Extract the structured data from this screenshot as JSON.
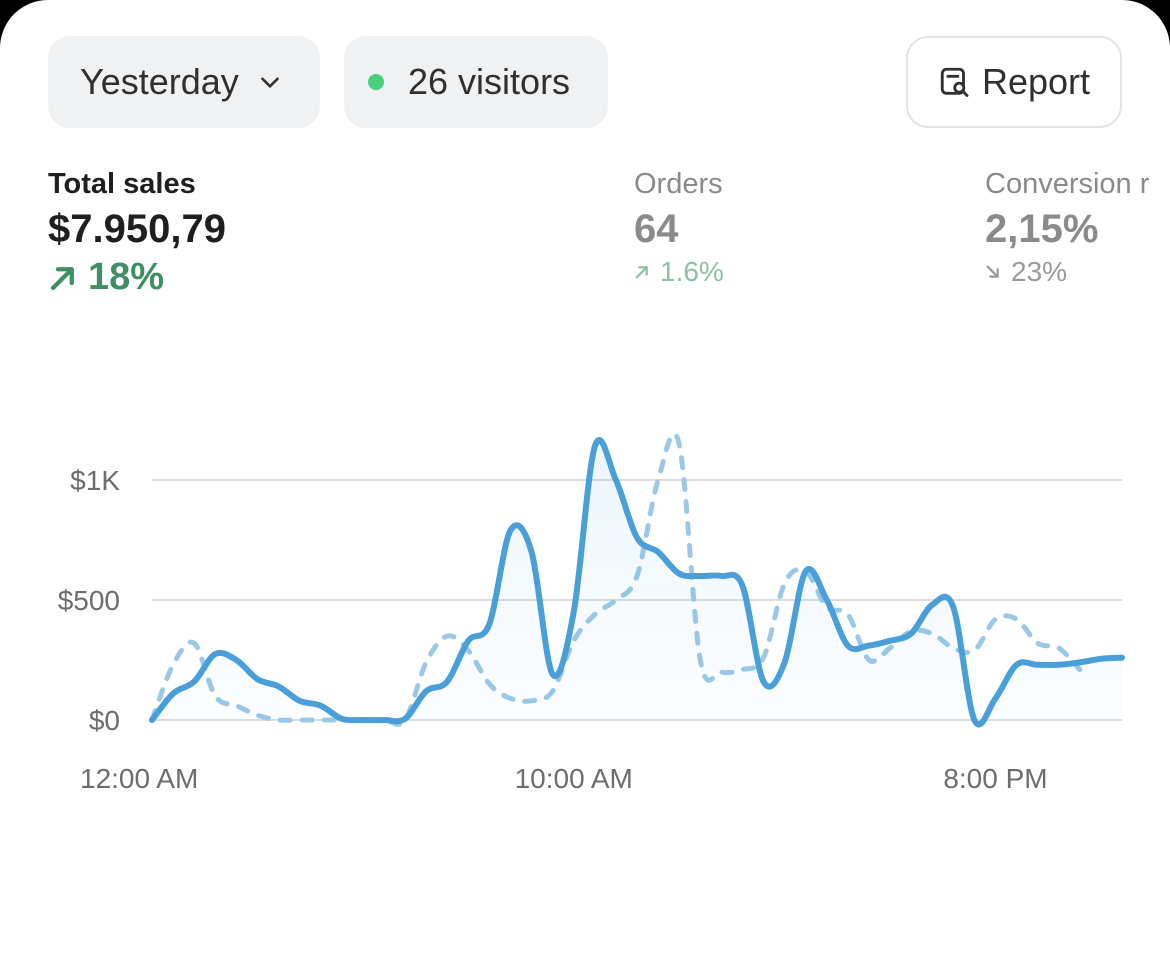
{
  "toolbar": {
    "date_label": "Yesterday",
    "visitors_label": "26 visitors",
    "report_label": "Report"
  },
  "metrics": {
    "sales": {
      "label": "Total sales",
      "value": "$7.950,79",
      "delta": "18%",
      "direction": "up"
    },
    "orders": {
      "label": "Orders",
      "value": "64",
      "delta": "1.6%",
      "direction": "up"
    },
    "conversion": {
      "label": "Conversion r",
      "value": "2,15%",
      "delta": "23%",
      "direction": "down"
    }
  },
  "colors": {
    "accent": "#4a9fd8",
    "comparison": "#9cc8e6",
    "positive": "#3f8f64",
    "live_dot": "#48d17c"
  },
  "chart_data": {
    "type": "line",
    "y_ticks": [
      {
        "value": 0,
        "label": "$0"
      },
      {
        "value": 500,
        "label": "$500"
      },
      {
        "value": 1000,
        "label": "$1K"
      }
    ],
    "x_ticks": [
      {
        "hour": 0,
        "label": "12:00 AM"
      },
      {
        "hour": 10,
        "label": "10:00 AM"
      },
      {
        "hour": 20,
        "label": "8:00 PM"
      }
    ],
    "ylim": [
      0,
      1000
    ],
    "xlim": [
      0,
      23
    ],
    "grid": true,
    "series": [
      {
        "style": "solid",
        "color": "#4a9fd8",
        "fill": true,
        "points": [
          [
            0,
            0
          ],
          [
            0.5,
            110
          ],
          [
            1.0,
            160
          ],
          [
            1.5,
            275
          ],
          [
            2.0,
            250
          ],
          [
            2.5,
            170
          ],
          [
            3.0,
            140
          ],
          [
            3.5,
            80
          ],
          [
            4.0,
            60
          ],
          [
            4.5,
            5
          ],
          [
            5.0,
            0
          ],
          [
            5.5,
            0
          ],
          [
            6.0,
            5
          ],
          [
            6.5,
            120
          ],
          [
            7.0,
            160
          ],
          [
            7.5,
            330
          ],
          [
            8.0,
            400
          ],
          [
            8.5,
            790
          ],
          [
            9.0,
            700
          ],
          [
            9.5,
            190
          ],
          [
            10.0,
            450
          ],
          [
            10.5,
            1140
          ],
          [
            11.0,
            1000
          ],
          [
            11.5,
            760
          ],
          [
            12.0,
            700
          ],
          [
            12.5,
            610
          ],
          [
            13.0,
            600
          ],
          [
            13.5,
            600
          ],
          [
            14.0,
            560
          ],
          [
            14.5,
            160
          ],
          [
            15.0,
            240
          ],
          [
            15.5,
            620
          ],
          [
            16.0,
            500
          ],
          [
            16.5,
            310
          ],
          [
            17.0,
            310
          ],
          [
            17.5,
            330
          ],
          [
            18.0,
            360
          ],
          [
            18.5,
            480
          ],
          [
            19.0,
            470
          ],
          [
            19.5,
            0
          ],
          [
            20.0,
            90
          ],
          [
            20.5,
            230
          ],
          [
            21.0,
            230
          ],
          [
            21.5,
            230
          ],
          [
            22.0,
            240
          ],
          [
            22.5,
            255
          ],
          [
            23.0,
            260
          ]
        ]
      },
      {
        "style": "dashed",
        "color": "#9cc8e6",
        "fill": false,
        "points": [
          [
            0,
            0
          ],
          [
            0.5,
            230
          ],
          [
            1.0,
            320
          ],
          [
            1.5,
            100
          ],
          [
            2.0,
            60
          ],
          [
            2.5,
            20
          ],
          [
            3.0,
            0
          ],
          [
            3.5,
            0
          ],
          [
            4.0,
            0
          ],
          [
            4.5,
            0
          ],
          [
            5.0,
            0
          ],
          [
            5.5,
            0
          ],
          [
            6.0,
            0
          ],
          [
            6.5,
            240
          ],
          [
            7.0,
            350
          ],
          [
            7.5,
            290
          ],
          [
            8.0,
            150
          ],
          [
            8.5,
            90
          ],
          [
            9.0,
            80
          ],
          [
            9.5,
            120
          ],
          [
            10.0,
            330
          ],
          [
            10.5,
            440
          ],
          [
            11.0,
            500
          ],
          [
            11.5,
            600
          ],
          [
            12.0,
            1000
          ],
          [
            12.5,
            1150
          ],
          [
            13.0,
            250
          ],
          [
            13.5,
            200
          ],
          [
            14.0,
            210
          ],
          [
            14.5,
            260
          ],
          [
            15.0,
            570
          ],
          [
            15.5,
            620
          ],
          [
            16.0,
            470
          ],
          [
            16.5,
            440
          ],
          [
            17.0,
            250
          ],
          [
            17.5,
            300
          ],
          [
            18.0,
            370
          ],
          [
            18.5,
            360
          ],
          [
            19.0,
            300
          ],
          [
            19.5,
            290
          ],
          [
            20.0,
            420
          ],
          [
            20.5,
            420
          ],
          [
            21.0,
            320
          ],
          [
            21.5,
            300
          ],
          [
            22.0,
            210
          ]
        ]
      }
    ]
  }
}
